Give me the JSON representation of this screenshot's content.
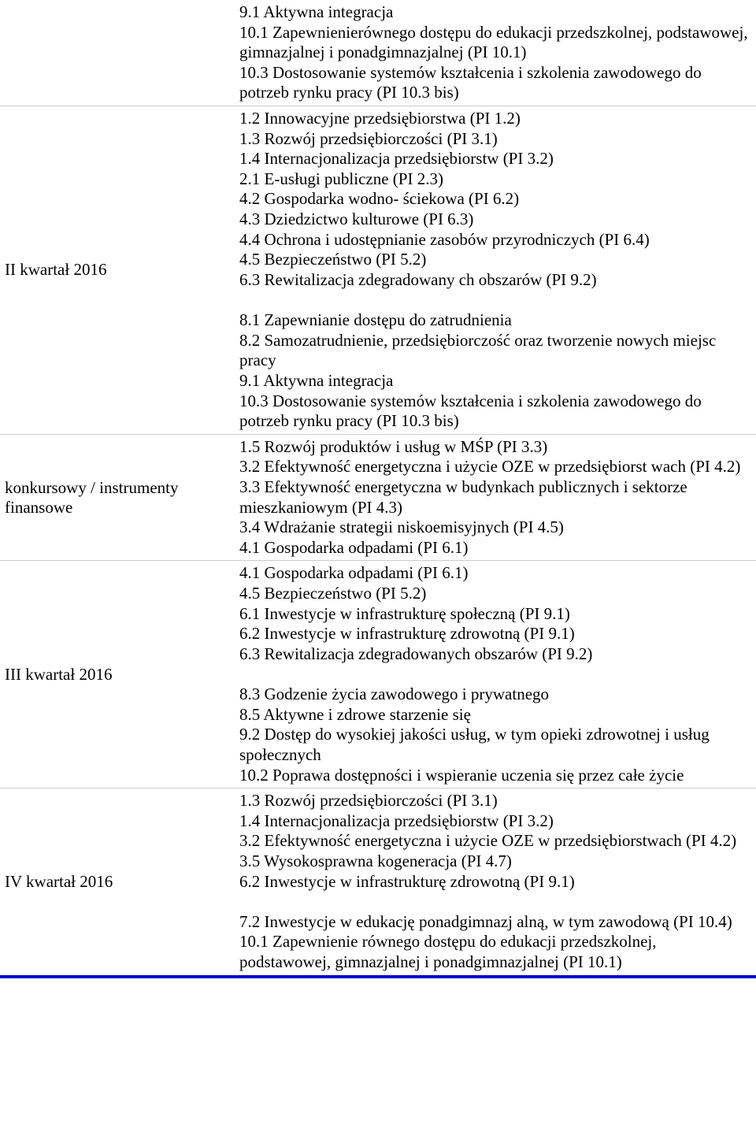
{
  "rows": [
    {
      "label": "",
      "blocks": [
        [
          "9.1 Aktywna integracja",
          "10.1 Zapewnienierównego dostępu do edukacji przedszkolnej, podstawowej, gimnazjalnej i ponadgimnazjalnej (PI 10.1)",
          "10.3 Dostosowanie systemów kształcenia i szkolenia zawodowego do potrzeb rynku pracy (PI 10.3 bis)"
        ]
      ]
    },
    {
      "label": "II kwartał 2016",
      "blocks": [
        [
          "1.2 Innowacyjne przedsiębiorstwa (PI 1.2)",
          "1.3 Rozwój przedsiębiorczości (PI 3.1)",
          "1.4 Internacjonalizacja przedsiębiorstw (PI 3.2)",
          "2.1 E-usługi publiczne (PI 2.3)",
          "4.2 Gospodarka wodno- ściekowa (PI 6.2)",
          "4.3 Dziedzictwo kulturowe (PI 6.3)",
          "4.4 Ochrona i udostępnianie zasobów przyrodniczych (PI 6.4)",
          "4.5 Bezpieczeństwo (PI 5.2)",
          "6.3 Rewitalizacja zdegradowany ch obszarów (PI 9.2)"
        ],
        [
          "8.1 Zapewnianie dostępu do zatrudnienia",
          "8.2 Samozatrudnienie, przedsiębiorczość oraz tworzenie nowych miejsc pracy",
          "9.1 Aktywna integracja",
          "10.3 Dostosowanie systemów kształcenia i szkolenia zawodowego do potrzeb rynku pracy (PI 10.3 bis)"
        ]
      ]
    },
    {
      "label": "konkursowy / instrumenty finansowe",
      "blocks": [
        [
          "1.5 Rozwój produktów i usług w MŚP (PI 3.3)",
          "3.2 Efektywność energetyczna i użycie OZE w przedsiębiorst wach (PI 4.2)",
          "3.3 Efektywność energetyczna w budynkach publicznych i sektorze mieszkaniowym (PI 4.3)",
          "3.4 Wdrażanie strategii niskoemisyjnych (PI 4.5)",
          "4.1 Gospodarka odpadami (PI 6.1)"
        ]
      ]
    },
    {
      "label": "III kwartał 2016",
      "blocks": [
        [
          "4.1 Gospodarka odpadami (PI 6.1)",
          "4.5 Bezpieczeństwo (PI 5.2)",
          "6.1 Inwestycje w infrastrukturę społeczną (PI 9.1)",
          "6.2 Inwestycje w infrastrukturę zdrowotną (PI 9.1)",
          "6.3 Rewitalizacja zdegradowanych obszarów (PI 9.2)"
        ],
        [
          "8.3 Godzenie życia zawodowego i prywatnego",
          "8.5 Aktywne i zdrowe starzenie się",
          "9.2 Dostęp do wysokiej jakości usług, w tym opieki zdrowotnej i usług społecznych",
          "10.2 Poprawa dostępności i wspieranie uczenia się przez całe życie"
        ]
      ]
    },
    {
      "label": "IV kwartał 2016",
      "blocks": [
        [
          "1.3 Rozwój przedsiębiorczości (PI 3.1)",
          "1.4 Internacjonalizacja przedsiębiorstw (PI 3.2)",
          "3.2 Efektywność energetyczna i użycie OZE w przedsiębiorstwach (PI 4.2)",
          "3.5 Wysokosprawna kogeneracja (PI 4.7)",
          "6.2 Inwestycje w infrastrukturę zdrowotną (PI 9.1)"
        ],
        [
          "7.2 Inwestycje w edukację ponadgimnazj alną, w tym zawodową (PI 10.4)",
          "10.1 Zapewnienie równego dostępu do edukacji przedszkolnej, podstawowej, gimnazjalnej i ponadgimnazjalnej (PI 10.1)"
        ]
      ]
    }
  ]
}
